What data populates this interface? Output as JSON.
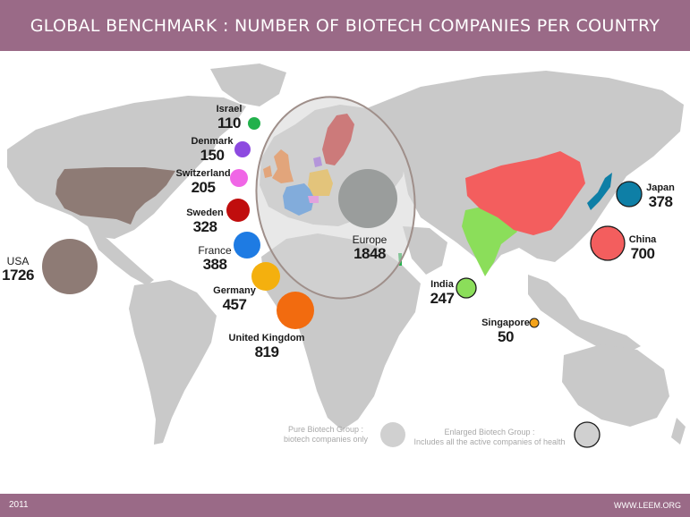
{
  "header": {
    "title": "GLOBAL BENCHMARK : NUMBER OF BIOTECH COMPANIES PER COUNTRY"
  },
  "colors": {
    "header_bg": "#9a6a87",
    "land": "#c9c9c9",
    "usa": "#8e7b75",
    "israel": "#22b14c",
    "denmark": "#8d4ae0",
    "switzerland": "#f066e6",
    "sweden": "#c00d0d",
    "france": "#1e7be3",
    "germany": "#f4b00e",
    "united_kingdom": "#f26b0f",
    "europe": "#9a9d9c",
    "india": "#8bde5a",
    "china": "#f35e5e",
    "japan": "#0e7fa6",
    "singapore": "#f4a31a"
  },
  "countries": {
    "israel": {
      "name": "Israel",
      "value": "110"
    },
    "denmark": {
      "name": "Denmark",
      "value": "150"
    },
    "switzerland": {
      "name": "Switzerland",
      "value": "205"
    },
    "sweden": {
      "name": "Sweden",
      "value": "328"
    },
    "france": {
      "name": "France",
      "value": "388"
    },
    "germany": {
      "name": "Germany",
      "value": "457"
    },
    "united_kingdom": {
      "name": "United Kingdom",
      "value": "819"
    },
    "usa": {
      "name": "USA",
      "value": "1726"
    },
    "europe": {
      "name": "Europe",
      "value": "1848"
    },
    "india": {
      "name": "India",
      "value": "247"
    },
    "singapore": {
      "name": "Singapore",
      "value": "50"
    },
    "japan": {
      "name": "Japan",
      "value": "378"
    },
    "china": {
      "name": "China",
      "value": "700"
    }
  },
  "legend": {
    "pure_line1": "Pure Biotech Group :",
    "pure_line2": "biotech companies only",
    "enlarged_line1": "Enlarged Biotech Group :",
    "enlarged_line2": "Includes all the active companies of health"
  },
  "footer": {
    "year": "2011",
    "url": "WWW.LEEM.ORG"
  }
}
